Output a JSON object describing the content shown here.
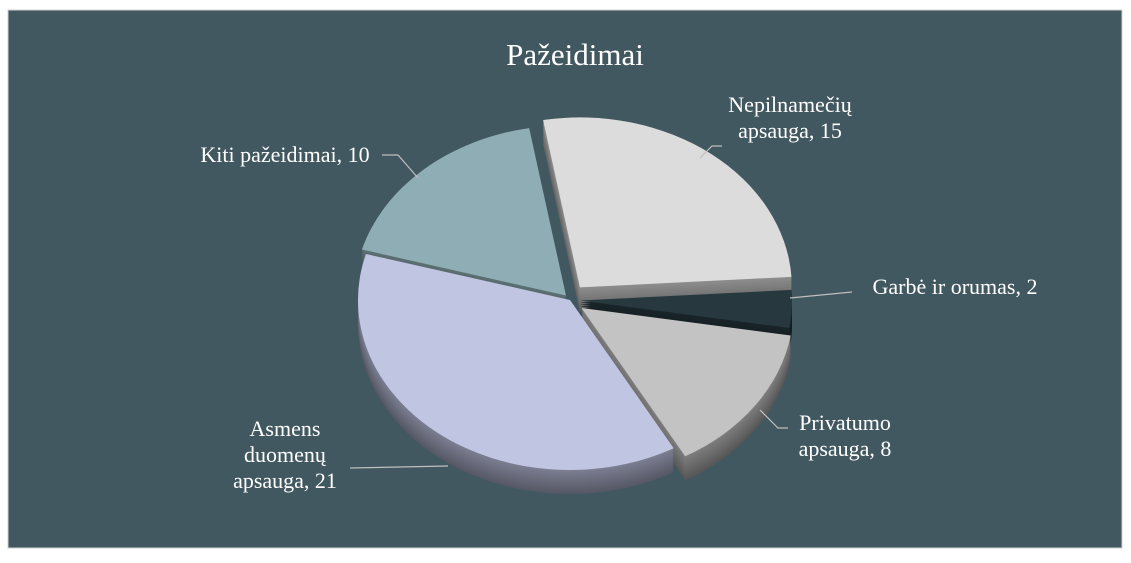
{
  "chart_data": {
    "type": "pie",
    "title": "Pažeidimai",
    "values": [
      15,
      2,
      8,
      21,
      10
    ],
    "value_labels": [
      "Nepilnamečių apsauga, 15",
      "Garbė ir orumas, 2",
      "Privatumo apsauga, 8",
      "Asmens duomenų apsauga, 21",
      "Kiti pažeidimai, 10"
    ],
    "colors": [
      "#dcdcdc",
      "#27393f",
      "#c3c3c3",
      "#c0c5e2",
      "#8fadb4"
    ]
  }
}
